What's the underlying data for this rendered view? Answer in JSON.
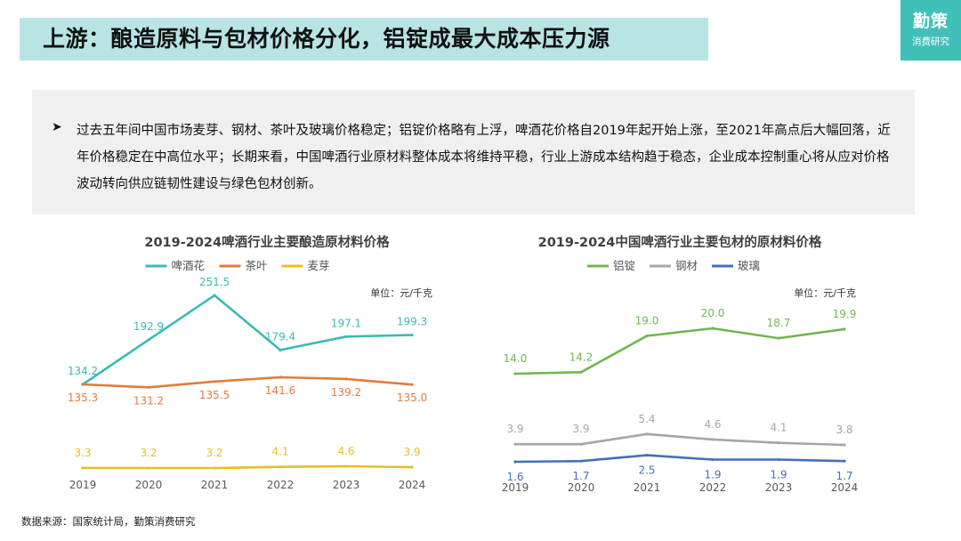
{
  "header": {
    "title": "上游：酿造原料与包材价格分化，铝锭成最大成本压力源",
    "logo_main": "勤策",
    "logo_sub": "消费研究"
  },
  "summary": {
    "bullet": "➤",
    "text": "过去五年间中国市场麦芽、钢材、茶叶及玻璃价格稳定；铝锭价格略有上浮，啤酒花价格自2019年起开始上涨，至2021年高点后大幅回落，近年价格稳定在中高位水平；长期来看，中国啤酒行业原材料整体成本将维持平稳，行业上游成本结构趋于稳态，企业成本控制重心将从应对价格波动转向供应链韧性建设与绿色包材创新。"
  },
  "chart_data": [
    {
      "type": "line",
      "title": "2019-2024啤酒行业主要酿造原材料价格",
      "unit": "单位：元/千克",
      "categories": [
        "2019",
        "2020",
        "2021",
        "2022",
        "2023",
        "2024"
      ],
      "series": [
        {
          "name": "啤酒花",
          "color": "#3cbab2",
          "values": [
            134.2,
            192.9,
            251.5,
            179.4,
            197.1,
            199.3
          ]
        },
        {
          "name": "茶叶",
          "color": "#e07d3c",
          "values": [
            135.3,
            131.2,
            135.5,
            141.6,
            139.2,
            135.0
          ]
        },
        {
          "name": "麦芽",
          "color": "#e8c01e",
          "values": [
            3.3,
            3.2,
            3.2,
            4.1,
            4.6,
            3.9
          ]
        }
      ]
    },
    {
      "type": "line",
      "title": "2019-2024中国啤酒行业主要包材的原材料价格",
      "unit": "单位：元/千克",
      "categories": [
        "2019",
        "2020",
        "2021",
        "2022",
        "2023",
        "2024"
      ],
      "series": [
        {
          "name": "铝锭",
          "color": "#72b653",
          "values": [
            14.0,
            14.2,
            19.0,
            20.0,
            18.7,
            19.9
          ]
        },
        {
          "name": "钢材",
          "color": "#a6a6a6",
          "values": [
            3.9,
            3.9,
            5.4,
            4.6,
            4.1,
            3.8
          ]
        },
        {
          "name": "玻璃",
          "color": "#4570b4",
          "values": [
            1.6,
            1.7,
            2.5,
            1.9,
            1.9,
            1.7
          ]
        }
      ]
    }
  ],
  "footer": {
    "source": "数据来源：国家统计局，勤策消费研究"
  }
}
